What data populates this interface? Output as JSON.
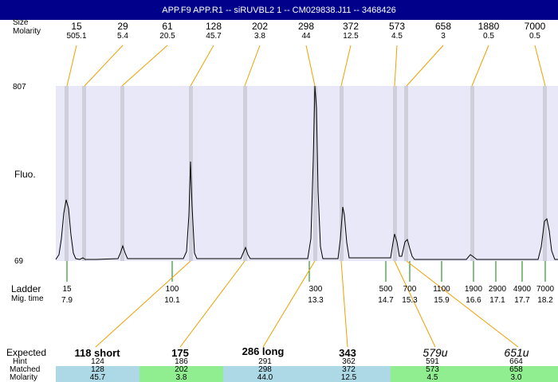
{
  "title": "APP.F9  APP.R1 -- siRUVBL2 1 -- CM029838.J11 -- 3468426",
  "left_labels": {
    "size": "Size",
    "molarity": "Molarity",
    "y_max": "807",
    "y_label": "Fluo.",
    "y_min": "69",
    "ladder": "Ladder",
    "mig_time": "Mig. time",
    "expected": "Expected",
    "hint": "Hint",
    "matched": "Matched",
    "molarity_bottom": "Molarity"
  },
  "top_peaks": [
    {
      "size": "15",
      "molarity": "505.1"
    },
    {
      "size": "29",
      "molarity": "5.4"
    },
    {
      "size": "61",
      "molarity": "20.5"
    },
    {
      "size": "128",
      "molarity": "45.7"
    },
    {
      "size": "202",
      "molarity": "3.8"
    },
    {
      "size": "298",
      "molarity": "44"
    },
    {
      "size": "372",
      "molarity": "12.5"
    },
    {
      "size": "573",
      "molarity": "4.5"
    },
    {
      "size": "658",
      "molarity": "3"
    },
    {
      "size": "1880",
      "molarity": "0.5"
    },
    {
      "size": "7000",
      "molarity": "0.5"
    }
  ],
  "ladder": [
    {
      "size": "15",
      "time": "7.9"
    },
    {
      "size": "100",
      "time": "10.1"
    },
    {
      "size": "300",
      "time": "13.3"
    },
    {
      "size": "500",
      "time": "14.7"
    },
    {
      "size": "700",
      "time": "15.3"
    },
    {
      "size": "1100",
      "time": "15.9"
    },
    {
      "size": "1900",
      "time": "16.6"
    },
    {
      "size": "2900",
      "time": "17.1"
    },
    {
      "size": "4900",
      "time": "17.7"
    },
    {
      "size": "7000",
      "time": "18.2"
    }
  ],
  "expected": [
    {
      "label": "118 short",
      "hint": "124",
      "matched": "128",
      "molarity": "45.7"
    },
    {
      "label": "175",
      "hint": "186",
      "matched": "202",
      "molarity": "3.8"
    },
    {
      "label": "286 long",
      "hint": "291",
      "matched": "298",
      "molarity": "44.0"
    },
    {
      "label": "343",
      "hint": "362",
      "matched": "372",
      "molarity": "12.5"
    },
    {
      "label": "579u",
      "hint": "591",
      "matched": "573",
      "molarity": "4.5"
    },
    {
      "label": "651u",
      "hint": "664",
      "matched": "658",
      "molarity": "3.0"
    }
  ],
  "colors": {
    "title_bg": "#00008b",
    "plot_bg": "#e8e8f8",
    "band": "#cfcfdc",
    "connector": "#f0a000",
    "ladder_tick": "#008000",
    "cell_blue": "#add8e6",
    "cell_green": "#90ee90"
  }
}
